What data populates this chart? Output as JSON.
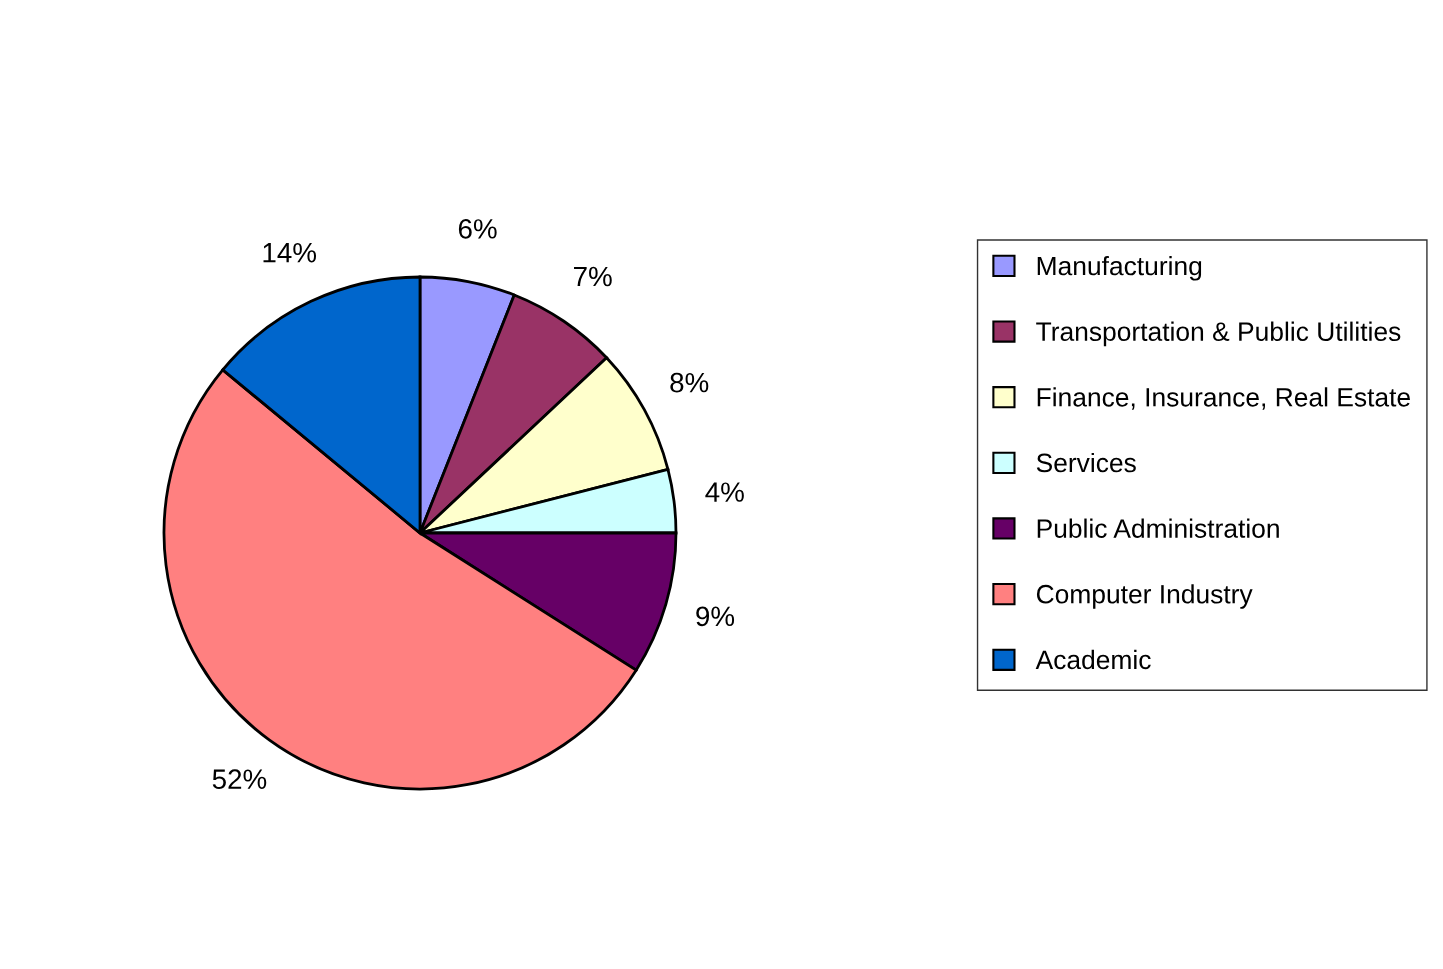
{
  "chart_data": {
    "type": "pie",
    "categories": [
      "Manufacturing",
      "Transportation & Public Utilities",
      "Finance, Insurance, Real Estate",
      "Services",
      "Public Administration",
      "Computer Industry",
      "Academic"
    ],
    "values": [
      6,
      7,
      8,
      4,
      9,
      52,
      14
    ],
    "value_labels": [
      "6%",
      "7%",
      "8%",
      "4%",
      "9%",
      "52%",
      "14%"
    ],
    "colors": [
      "#9999ff",
      "#993366",
      "#ffffcc",
      "#ccffff",
      "#660066",
      "#ff8080",
      "#0066cc"
    ],
    "legend": "right"
  }
}
